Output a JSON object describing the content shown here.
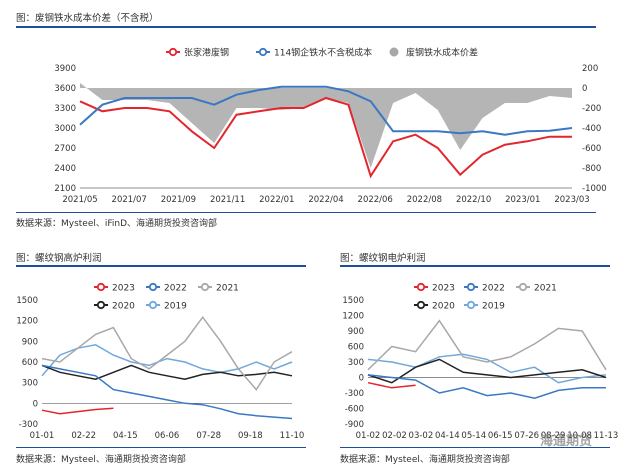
{
  "figures": {
    "top": {
      "caption": "图：废钢铁水成本价差（不含税）",
      "source": "数据来源：Mysteel、iFinD、海通期货投资咨询部"
    },
    "bottom_left": {
      "caption": "图：螺纹钢高炉利润",
      "source": "数据来源：Mysteel、海通期货投资咨询部"
    },
    "bottom_right": {
      "caption": "图：螺纹钢电炉利润",
      "source": "数据来源：Mysteel、海通期货投资咨询部"
    }
  },
  "watermark": "海通期货",
  "colors": {
    "accent": "#1f4e9c",
    "red": "#e3262e",
    "blue": "#3a78c4",
    "gray": "#a8a8a8",
    "black": "#222222",
    "lightblue": "#6fa8dc"
  },
  "chart_data": [
    {
      "id": "top",
      "type": "line",
      "x_ticks": [
        "2021/05",
        "2021/07",
        "2021/09",
        "2021/11",
        "2022/01",
        "2022/04",
        "2022/06",
        "2022/08",
        "2022/10",
        "2023/01",
        "2023/03"
      ],
      "x": [
        "2021/05",
        "2021/06",
        "2021/07",
        "2021/08",
        "2021/09",
        "2021/10",
        "2021/11",
        "2021/12",
        "2022/01",
        "2022/02",
        "2022/03",
        "2022/04",
        "2022/05",
        "2022/06",
        "2022/07",
        "2022/08",
        "2022/09",
        "2022/10",
        "2022/11",
        "2022/12",
        "2023/01",
        "2023/02",
        "2023/03"
      ],
      "ylim_left": [
        2100,
        3900
      ],
      "yticks_left": [
        2100,
        2400,
        2700,
        3000,
        3300,
        3600,
        3900
      ],
      "ylim_right": [
        -1000,
        200
      ],
      "yticks_right": [
        -1000,
        -800,
        -600,
        -400,
        -200,
        0,
        200
      ],
      "grid": false,
      "legend_position": "top",
      "series": [
        {
          "name": "张家港废钢",
          "type": "line",
          "axis": "left",
          "values": [
            3400,
            3250,
            3300,
            3300,
            3250,
            2950,
            2700,
            3200,
            3250,
            3300,
            3300,
            3450,
            3350,
            2280,
            2800,
            2900,
            2700,
            2300,
            2600,
            2750,
            2800,
            2870,
            2870
          ]
        },
        {
          "name": "114钢企铁水不含税成本",
          "type": "line",
          "axis": "left",
          "values": [
            3050,
            3350,
            3450,
            3450,
            3450,
            3450,
            3350,
            3500,
            3570,
            3620,
            3620,
            3620,
            3550,
            3400,
            2950,
            2950,
            2950,
            2920,
            2950,
            2900,
            2950,
            2960,
            3000
          ]
        },
        {
          "name": "废钢铁水成本价差",
          "type": "area",
          "axis": "right",
          "values": [
            50,
            -120,
            -120,
            -120,
            -150,
            -350,
            -550,
            -200,
            -200,
            -220,
            -200,
            -100,
            -150,
            -800,
            -150,
            -50,
            -220,
            -620,
            -300,
            -150,
            -150,
            -80,
            -100
          ]
        }
      ]
    },
    {
      "id": "bottom_left",
      "type": "line",
      "x_ticks": [
        "01-01",
        "02-22",
        "04-15",
        "06-06",
        "07-28",
        "09-18",
        "11-10"
      ],
      "ylim": [
        -300,
        1500
      ],
      "yticks": [
        -300,
        0,
        300,
        600,
        900,
        1200,
        1500
      ],
      "grid": false,
      "legend_position": "top",
      "x": [
        "01-01",
        "01-29",
        "02-22",
        "03-20",
        "04-15",
        "05-10",
        "06-06",
        "07-02",
        "07-28",
        "08-22",
        "09-18",
        "10-14",
        "11-10",
        "12-05",
        "12-31"
      ],
      "series": [
        {
          "name": "2023",
          "values": [
            -100,
            -150,
            -120,
            -90,
            -70,
            null,
            null,
            null,
            null,
            null,
            null,
            null,
            null,
            null,
            null
          ]
        },
        {
          "name": "2022",
          "values": [
            550,
            500,
            450,
            400,
            200,
            150,
            100,
            50,
            0,
            -20,
            -80,
            -150,
            -180,
            -200,
            -220
          ]
        },
        {
          "name": "2021",
          "values": [
            650,
            600,
            800,
            1000,
            1100,
            650,
            500,
            700,
            900,
            1250,
            900,
            500,
            200,
            600,
            750
          ]
        },
        {
          "name": "2020",
          "values": [
            550,
            450,
            400,
            350,
            450,
            550,
            450,
            400,
            350,
            420,
            450,
            400,
            420,
            450,
            400
          ]
        },
        {
          "name": "2019",
          "values": [
            400,
            700,
            800,
            850,
            700,
            600,
            550,
            650,
            600,
            500,
            450,
            500,
            600,
            500,
            600
          ]
        }
      ]
    },
    {
      "id": "bottom_right",
      "type": "line",
      "x_ticks": [
        "01-02",
        "02-02",
        "03-02",
        "04-14",
        "05-14",
        "06-15",
        "07-26",
        "08-29",
        "10-08",
        "11-13"
      ],
      "ylim": [
        -900,
        1500
      ],
      "yticks": [
        -900,
        -600,
        -300,
        0,
        300,
        600,
        900,
        1200,
        1500
      ],
      "grid": false,
      "legend_position": "top",
      "x": [
        "01-02",
        "02-02",
        "03-02",
        "04-14",
        "05-14",
        "06-15",
        "07-26",
        "08-29",
        "10-08",
        "11-13",
        "12-20"
      ],
      "series": [
        {
          "name": "2023",
          "values": [
            -100,
            -200,
            -150,
            null,
            null,
            null,
            null,
            null,
            null,
            null,
            null
          ]
        },
        {
          "name": "2022",
          "values": [
            50,
            0,
            -50,
            -300,
            -200,
            -350,
            -300,
            -400,
            -250,
            -200,
            -200
          ]
        },
        {
          "name": "2021",
          "values": [
            150,
            600,
            500,
            1100,
            400,
            300,
            400,
            650,
            950,
            900,
            150
          ]
        },
        {
          "name": "2020",
          "values": [
            50,
            -100,
            200,
            350,
            100,
            50,
            0,
            50,
            100,
            150,
            0
          ]
        },
        {
          "name": "2019",
          "values": [
            350,
            300,
            200,
            400,
            450,
            350,
            100,
            200,
            -100,
            0,
            50
          ]
        }
      ]
    }
  ]
}
